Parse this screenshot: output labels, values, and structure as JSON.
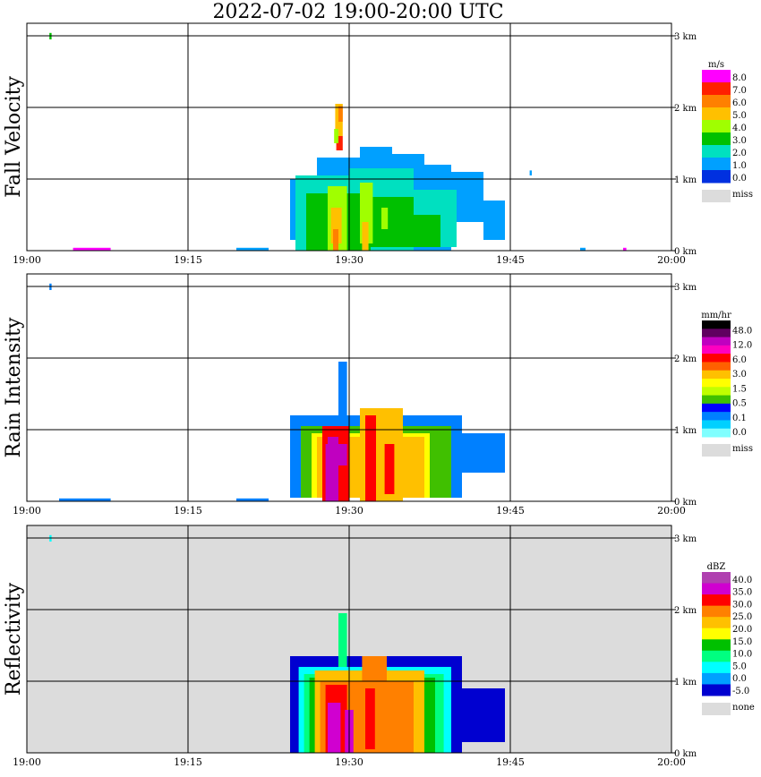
{
  "header": {
    "title": "2022-07-02   19:00-20:00 UTC"
  },
  "chart_data": [
    {
      "type": "heatmap",
      "ylabel": "Fall Velocity",
      "x_ticks": [
        "19:00",
        "19:15",
        "19:30",
        "19:45",
        "20:00"
      ],
      "y_ticks": [
        "0 km",
        "1 km",
        "2 km",
        "3 km"
      ],
      "xlim_minutes": [
        0,
        60
      ],
      "ylim_km": [
        0,
        3.0
      ],
      "background": "#ffffff",
      "legend": {
        "unit": "m/s",
        "labels": [
          "8.0",
          "7.0",
          "6.0",
          "5.0",
          "4.0",
          "3.0",
          "2.0",
          "1.0",
          "0.0"
        ],
        "colors": [
          "#ff00ff",
          "#ff2000",
          "#ff8000",
          "#ffc000",
          "#a0ff00",
          "#00c000",
          "#00e0c0",
          "#00a0ff",
          "#0030e0"
        ],
        "missing_label": "miss",
        "missing_color": "#dcdcdc"
      },
      "cells": [
        {
          "t0": 24.5,
          "t1": 27,
          "h0": 0.15,
          "h1": 1.0,
          "v": 1.0
        },
        {
          "t0": 27,
          "t1": 31,
          "h0": 0.0,
          "h1": 1.3,
          "v": 1.0
        },
        {
          "t0": 31,
          "t1": 34,
          "h0": 0.0,
          "h1": 1.45,
          "v": 1.0
        },
        {
          "t0": 34,
          "t1": 37,
          "h0": 0.0,
          "h1": 1.35,
          "v": 1.0
        },
        {
          "t0": 37,
          "t1": 39.5,
          "h0": 0.0,
          "h1": 1.2,
          "v": 1.0
        },
        {
          "t0": 39.5,
          "t1": 42.5,
          "h0": 0.4,
          "h1": 1.1,
          "v": 1.0
        },
        {
          "t0": 42.5,
          "t1": 44.5,
          "h0": 0.15,
          "h1": 0.7,
          "v": 1.0
        },
        {
          "t0": 25,
          "t1": 30,
          "h0": 0.0,
          "h1": 1.05,
          "v": 2.0
        },
        {
          "t0": 30,
          "t1": 36,
          "h0": 0.0,
          "h1": 1.15,
          "v": 2.0
        },
        {
          "t0": 36,
          "t1": 40,
          "h0": 0.05,
          "h1": 0.85,
          "v": 2.0
        },
        {
          "t0": 26,
          "t1": 32,
          "h0": 0.0,
          "h1": 0.8,
          "v": 3.0
        },
        {
          "t0": 32,
          "t1": 36,
          "h0": 0.05,
          "h1": 0.75,
          "v": 3.0
        },
        {
          "t0": 36,
          "t1": 38.5,
          "h0": 0.05,
          "h1": 0.5,
          "v": 3.0
        },
        {
          "t0": 28,
          "t1": 29.8,
          "h0": 0.0,
          "h1": 0.9,
          "v": 4.0
        },
        {
          "t0": 31,
          "t1": 32.2,
          "h0": 0.1,
          "h1": 0.95,
          "v": 4.0
        },
        {
          "t0": 33,
          "t1": 33.6,
          "h0": 0.3,
          "h1": 0.6,
          "v": 4.0
        },
        {
          "t0": 28.3,
          "t1": 29.3,
          "h0": 0.1,
          "h1": 0.6,
          "v": 5.0
        },
        {
          "t0": 31.2,
          "t1": 31.8,
          "h0": 0.0,
          "h1": 0.4,
          "v": 5.0
        },
        {
          "t0": 28.5,
          "t1": 29.0,
          "h0": 0.0,
          "h1": 0.3,
          "v": 6.0
        },
        {
          "t0": 28.8,
          "t1": 29.4,
          "h0": 1.4,
          "h1": 1.6,
          "v": 7.0
        },
        {
          "t0": 28.7,
          "t1": 29.4,
          "h0": 1.6,
          "h1": 2.05,
          "v": 5.0
        },
        {
          "t0": 29.0,
          "t1": 29.4,
          "h0": 1.8,
          "h1": 2.02,
          "v": 6.0
        },
        {
          "t0": 28.6,
          "t1": 29.0,
          "h0": 1.5,
          "h1": 1.7,
          "v": 4.0
        },
        {
          "t0": 4.3,
          "t1": 7.8,
          "h0": 0.0,
          "h1": 0.04,
          "v": 8.0
        },
        {
          "t0": 19.5,
          "t1": 22.5,
          "h0": 0.0,
          "h1": 0.04,
          "v": 1.0
        },
        {
          "t0": 2.1,
          "t1": 2.3,
          "h0": 2.95,
          "h1": 3.04,
          "v": 3.0
        },
        {
          "t0": 46.8,
          "t1": 47.0,
          "h0": 1.05,
          "h1": 1.12,
          "v": 1.0
        },
        {
          "t0": 51.5,
          "t1": 52.0,
          "h0": 0.0,
          "h1": 0.04,
          "v": 1.0
        },
        {
          "t0": 55.5,
          "t1": 55.8,
          "h0": 0.0,
          "h1": 0.04,
          "v": 8.0
        }
      ]
    },
    {
      "type": "heatmap",
      "ylabel": "Rain Intensity",
      "x_ticks": [
        "19:00",
        "19:15",
        "19:30",
        "19:45",
        "20:00"
      ],
      "y_ticks": [
        "0 km",
        "1 km",
        "2 km",
        "3 km"
      ],
      "xlim_minutes": [
        0,
        60
      ],
      "ylim_km": [
        0,
        3.0
      ],
      "background": "#ffffff",
      "legend": {
        "unit": "mm/hr",
        "labels": [
          "48.0",
          "12.0",
          "6.0",
          "3.0",
          "1.5",
          "0.5",
          "0.1",
          "0.0"
        ],
        "colors": [
          "#000000",
          "#600060",
          "#c000c0",
          "#ff00c0",
          "#ff0000",
          "#ff6000",
          "#ffc000",
          "#ffff00",
          "#c0ff00",
          "#40c000",
          "#0000ff",
          "#0080ff",
          "#00d0ff",
          "#80ffff"
        ],
        "missing_label": "miss",
        "missing_color": "#dcdcdc"
      },
      "cells": [
        {
          "t0": 24.5,
          "t1": 40.5,
          "h0": 0.05,
          "h1": 1.2,
          "v": 0.1
        },
        {
          "t0": 40.5,
          "t1": 44.5,
          "h0": 0.4,
          "h1": 0.95,
          "v": 0.1
        },
        {
          "t0": 29.0,
          "t1": 29.8,
          "h0": 1.2,
          "h1": 1.95,
          "v": 0.1
        },
        {
          "t0": 25.5,
          "t1": 39.5,
          "h0": 0.05,
          "h1": 1.05,
          "v": 0.5
        },
        {
          "t0": 26,
          "t1": 38.5,
          "h0": 0.05,
          "h1": 1.0,
          "v": 1.0
        },
        {
          "t0": 26.5,
          "t1": 37.5,
          "h0": 0.05,
          "h1": 0.95,
          "v": 1.5
        },
        {
          "t0": 27,
          "t1": 37,
          "h0": 0.05,
          "h1": 0.9,
          "v": 3.0
        },
        {
          "t0": 27.5,
          "t1": 30,
          "h0": 0.0,
          "h1": 1.05,
          "v": 6.0
        },
        {
          "t0": 31,
          "t1": 35,
          "h0": 0.0,
          "h1": 1.3,
          "v": 3.0
        },
        {
          "t0": 27.8,
          "t1": 29.8,
          "h0": 0.0,
          "h1": 0.8,
          "v": 12.0
        },
        {
          "t0": 31.5,
          "t1": 32.5,
          "h0": 0.0,
          "h1": 1.2,
          "v": 6.0
        },
        {
          "t0": 28.0,
          "t1": 29.0,
          "h0": 0.5,
          "h1": 0.9,
          "v": 24.0
        },
        {
          "t0": 29.0,
          "t1": 30.0,
          "h0": 0.0,
          "h1": 0.5,
          "v": 6.0
        },
        {
          "t0": 33.3,
          "t1": 34.2,
          "h0": 0.1,
          "h1": 0.8,
          "v": 6.0
        },
        {
          "t0": 3.0,
          "t1": 7.8,
          "h0": 0.0,
          "h1": 0.04,
          "v": 0.1
        },
        {
          "t0": 19.5,
          "t1": 22.5,
          "h0": 0.0,
          "h1": 0.04,
          "v": 0.1
        },
        {
          "t0": 2.1,
          "t1": 2.3,
          "h0": 2.95,
          "h1": 3.04,
          "v": 0.1
        }
      ]
    },
    {
      "type": "heatmap",
      "ylabel": "Reflectivity",
      "x_ticks": [
        "19:00",
        "19:15",
        "19:30",
        "19:45",
        "20:00"
      ],
      "y_ticks": [
        "0 km",
        "1 km",
        "2 km",
        "3 km"
      ],
      "xlim_minutes": [
        0,
        60
      ],
      "ylim_km": [
        0,
        3.0
      ],
      "background": "#dcdcdc",
      "legend": {
        "unit": "dBZ",
        "labels": [
          "40.0",
          "35.0",
          "30.0",
          "25.0",
          "20.0",
          "15.0",
          "10.0",
          "5.0",
          "0.0",
          "-5.0"
        ],
        "colors": [
          "#b040b0",
          "#d000d0",
          "#ff0000",
          "#ff8000",
          "#ffc000",
          "#ffff00",
          "#00c000",
          "#00ff80",
          "#00ffff",
          "#00a0ff",
          "#0000d0"
        ],
        "missing_label": "none",
        "missing_color": "#dcdcdc"
      },
      "cells": [
        {
          "t0": 24.5,
          "t1": 40.5,
          "h0": 0.0,
          "h1": 1.35,
          "v": -5.0
        },
        {
          "t0": 40.5,
          "t1": 44.5,
          "h0": 0.15,
          "h1": 0.9,
          "v": -5.0
        },
        {
          "t0": 25.3,
          "t1": 39.5,
          "h0": 0.0,
          "h1": 1.2,
          "v": 5.0
        },
        {
          "t0": 25.8,
          "t1": 38.8,
          "h0": 0.0,
          "h1": 1.1,
          "v": 10.0
        },
        {
          "t0": 26.3,
          "t1": 38.0,
          "h0": 0.0,
          "h1": 1.05,
          "v": 15.0
        },
        {
          "t0": 26.8,
          "t1": 37.0,
          "h0": 0.0,
          "h1": 1.15,
          "v": 20.0
        },
        {
          "t0": 27.3,
          "t1": 36.0,
          "h0": 0.0,
          "h1": 1.0,
          "v": 25.0
        },
        {
          "t0": 29.0,
          "t1": 29.8,
          "h0": 1.2,
          "h1": 1.95,
          "v": 10.0
        },
        {
          "t0": 31.2,
          "t1": 33.5,
          "h0": 0.0,
          "h1": 1.35,
          "v": 25.0
        },
        {
          "t0": 27.8,
          "t1": 29.8,
          "h0": 0.0,
          "h1": 0.95,
          "v": 30.0
        },
        {
          "t0": 28.0,
          "t1": 29.2,
          "h0": 0.0,
          "h1": 0.7,
          "v": 35.0
        },
        {
          "t0": 31.5,
          "t1": 32.4,
          "h0": 0.05,
          "h1": 0.9,
          "v": 30.0
        },
        {
          "t0": 29.6,
          "t1": 30.4,
          "h0": 0.0,
          "h1": 0.6,
          "v": 35.0
        },
        {
          "t0": 2.1,
          "t1": 2.3,
          "h0": 2.95,
          "h1": 3.04,
          "v": 5.0
        }
      ]
    }
  ]
}
